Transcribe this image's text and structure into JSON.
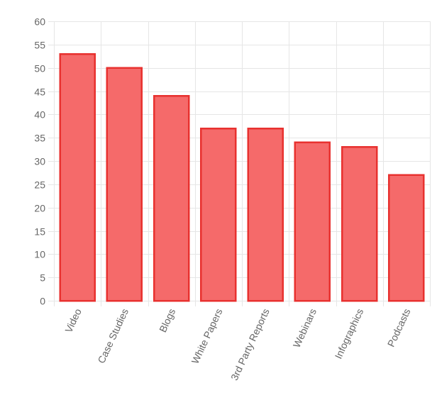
{
  "chart_data": {
    "type": "bar",
    "categories": [
      "Video",
      "Case Studies",
      "Blogs",
      "White Papers",
      "3rd Party Reports",
      "Webinars",
      "Infographics",
      "Podcasts"
    ],
    "values": [
      53,
      50,
      44,
      37,
      37,
      34,
      33,
      27
    ],
    "title": "",
    "xlabel": "",
    "ylabel": "",
    "ylim": [
      0,
      60
    ],
    "yticks": [
      0,
      5,
      10,
      15,
      20,
      25,
      30,
      35,
      40,
      45,
      50,
      55,
      60
    ],
    "grid": true,
    "legend": "none",
    "colors": {
      "bar_fill": "#f56a6a",
      "bar_stroke": "#e8312f",
      "grid": "#e6e6e6",
      "text": "#666666"
    }
  }
}
